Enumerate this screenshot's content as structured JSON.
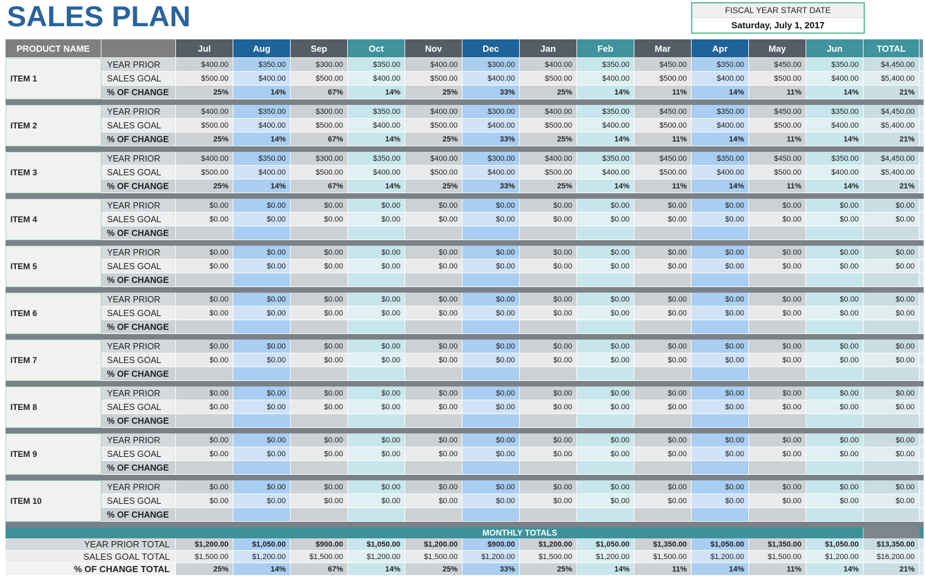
{
  "title": {
    "text": "SALES PLAN"
  },
  "fiscal": {
    "label": "FISCAL YEAR START DATE",
    "value": "Saturday, July 1, 2017"
  },
  "table": {
    "product_header": "PRODUCT NAME",
    "months": [
      "Jul",
      "Aug",
      "Sep",
      "Oct",
      "Nov",
      "Dec",
      "Jan",
      "Feb",
      "Mar",
      "Apr",
      "May",
      "Jun"
    ],
    "total_header": "TOTAL",
    "row_labels": [
      "YEAR PRIOR",
      "SALES GOAL",
      "% OF CHANGE"
    ],
    "items": [
      {
        "name": "ITEM 1",
        "year_prior": [
          "$400.00",
          "$350.00",
          "$300.00",
          "$350.00",
          "$400.00",
          "$300.00",
          "$400.00",
          "$350.00",
          "$450.00",
          "$350.00",
          "$450.00",
          "$350.00"
        ],
        "sales_goal": [
          "$500.00",
          "$400.00",
          "$500.00",
          "$400.00",
          "$500.00",
          "$400.00",
          "$500.00",
          "$400.00",
          "$500.00",
          "$400.00",
          "$500.00",
          "$400.00"
        ],
        "pct_change": [
          "25%",
          "14%",
          "67%",
          "14%",
          "25%",
          "33%",
          "25%",
          "14%",
          "11%",
          "14%",
          "11%",
          "14%"
        ],
        "total_year_prior": "$4,450.00",
        "total_sales_goal": "$5,400.00",
        "total_pct_change": "21%"
      },
      {
        "name": "ITEM 2",
        "year_prior": [
          "$400.00",
          "$350.00",
          "$300.00",
          "$350.00",
          "$400.00",
          "$300.00",
          "$400.00",
          "$350.00",
          "$450.00",
          "$350.00",
          "$450.00",
          "$350.00"
        ],
        "sales_goal": [
          "$500.00",
          "$400.00",
          "$500.00",
          "$400.00",
          "$500.00",
          "$400.00",
          "$500.00",
          "$400.00",
          "$500.00",
          "$400.00",
          "$500.00",
          "$400.00"
        ],
        "pct_change": [
          "25%",
          "14%",
          "67%",
          "14%",
          "25%",
          "33%",
          "25%",
          "14%",
          "11%",
          "14%",
          "11%",
          "14%"
        ],
        "total_year_prior": "$4,450.00",
        "total_sales_goal": "$5,400.00",
        "total_pct_change": "21%"
      },
      {
        "name": "ITEM 3",
        "year_prior": [
          "$400.00",
          "$350.00",
          "$300.00",
          "$350.00",
          "$400.00",
          "$300.00",
          "$400.00",
          "$350.00",
          "$450.00",
          "$350.00",
          "$450.00",
          "$350.00"
        ],
        "sales_goal": [
          "$500.00",
          "$400.00",
          "$500.00",
          "$400.00",
          "$500.00",
          "$400.00",
          "$500.00",
          "$400.00",
          "$500.00",
          "$400.00",
          "$500.00",
          "$400.00"
        ],
        "pct_change": [
          "25%",
          "14%",
          "67%",
          "14%",
          "25%",
          "33%",
          "25%",
          "14%",
          "11%",
          "14%",
          "11%",
          "14%"
        ],
        "total_year_prior": "$4,450.00",
        "total_sales_goal": "$5,400.00",
        "total_pct_change": "21%"
      },
      {
        "name": "ITEM 4",
        "year_prior": [
          "$0.00",
          "$0.00",
          "$0.00",
          "$0.00",
          "$0.00",
          "$0.00",
          "$0.00",
          "$0.00",
          "$0.00",
          "$0.00",
          "$0.00",
          "$0.00"
        ],
        "sales_goal": [
          "$0.00",
          "$0.00",
          "$0.00",
          "$0.00",
          "$0.00",
          "$0.00",
          "$0.00",
          "$0.00",
          "$0.00",
          "$0.00",
          "$0.00",
          "$0.00"
        ],
        "pct_change": [
          "",
          "",
          "",
          "",
          "",
          "",
          "",
          "",
          "",
          "",
          "",
          ""
        ],
        "total_year_prior": "$0.00",
        "total_sales_goal": "$0.00",
        "total_pct_change": ""
      },
      {
        "name": "ITEM 5",
        "year_prior": [
          "$0.00",
          "$0.00",
          "$0.00",
          "$0.00",
          "$0.00",
          "$0.00",
          "$0.00",
          "$0.00",
          "$0.00",
          "$0.00",
          "$0.00",
          "$0.00"
        ],
        "sales_goal": [
          "$0.00",
          "$0.00",
          "$0.00",
          "$0.00",
          "$0.00",
          "$0.00",
          "$0.00",
          "$0.00",
          "$0.00",
          "$0.00",
          "$0.00",
          "$0.00"
        ],
        "pct_change": [
          "",
          "",
          "",
          "",
          "",
          "",
          "",
          "",
          "",
          "",
          "",
          ""
        ],
        "total_year_prior": "$0.00",
        "total_sales_goal": "$0.00",
        "total_pct_change": ""
      },
      {
        "name": "ITEM 6",
        "year_prior": [
          "$0.00",
          "$0.00",
          "$0.00",
          "$0.00",
          "$0.00",
          "$0.00",
          "$0.00",
          "$0.00",
          "$0.00",
          "$0.00",
          "$0.00",
          "$0.00"
        ],
        "sales_goal": [
          "$0.00",
          "$0.00",
          "$0.00",
          "$0.00",
          "$0.00",
          "$0.00",
          "$0.00",
          "$0.00",
          "$0.00",
          "$0.00",
          "$0.00",
          "$0.00"
        ],
        "pct_change": [
          "",
          "",
          "",
          "",
          "",
          "",
          "",
          "",
          "",
          "",
          "",
          ""
        ],
        "total_year_prior": "$0.00",
        "total_sales_goal": "$0.00",
        "total_pct_change": ""
      },
      {
        "name": "ITEM 7",
        "year_prior": [
          "$0.00",
          "$0.00",
          "$0.00",
          "$0.00",
          "$0.00",
          "$0.00",
          "$0.00",
          "$0.00",
          "$0.00",
          "$0.00",
          "$0.00",
          "$0.00"
        ],
        "sales_goal": [
          "$0.00",
          "$0.00",
          "$0.00",
          "$0.00",
          "$0.00",
          "$0.00",
          "$0.00",
          "$0.00",
          "$0.00",
          "$0.00",
          "$0.00",
          "$0.00"
        ],
        "pct_change": [
          "",
          "",
          "",
          "",
          "",
          "",
          "",
          "",
          "",
          "",
          "",
          ""
        ],
        "total_year_prior": "$0.00",
        "total_sales_goal": "$0.00",
        "total_pct_change": ""
      },
      {
        "name": "ITEM 8",
        "year_prior": [
          "$0.00",
          "$0.00",
          "$0.00",
          "$0.00",
          "$0.00",
          "$0.00",
          "$0.00",
          "$0.00",
          "$0.00",
          "$0.00",
          "$0.00",
          "$0.00"
        ],
        "sales_goal": [
          "$0.00",
          "$0.00",
          "$0.00",
          "$0.00",
          "$0.00",
          "$0.00",
          "$0.00",
          "$0.00",
          "$0.00",
          "$0.00",
          "$0.00",
          "$0.00"
        ],
        "pct_change": [
          "",
          "",
          "",
          "",
          "",
          "",
          "",
          "",
          "",
          "",
          "",
          ""
        ],
        "total_year_prior": "$0.00",
        "total_sales_goal": "$0.00",
        "total_pct_change": ""
      },
      {
        "name": "ITEM 9",
        "year_prior": [
          "$0.00",
          "$0.00",
          "$0.00",
          "$0.00",
          "$0.00",
          "$0.00",
          "$0.00",
          "$0.00",
          "$0.00",
          "$0.00",
          "$0.00",
          "$0.00"
        ],
        "sales_goal": [
          "$0.00",
          "$0.00",
          "$0.00",
          "$0.00",
          "$0.00",
          "$0.00",
          "$0.00",
          "$0.00",
          "$0.00",
          "$0.00",
          "$0.00",
          "$0.00"
        ],
        "pct_change": [
          "",
          "",
          "",
          "",
          "",
          "",
          "",
          "",
          "",
          "",
          "",
          ""
        ],
        "total_year_prior": "$0.00",
        "total_sales_goal": "$0.00",
        "total_pct_change": ""
      },
      {
        "name": "ITEM 10",
        "year_prior": [
          "$0.00",
          "$0.00",
          "$0.00",
          "$0.00",
          "$0.00",
          "$0.00",
          "$0.00",
          "$0.00",
          "$0.00",
          "$0.00",
          "$0.00",
          "$0.00"
        ],
        "sales_goal": [
          "$0.00",
          "$0.00",
          "$0.00",
          "$0.00",
          "$0.00",
          "$0.00",
          "$0.00",
          "$0.00",
          "$0.00",
          "$0.00",
          "$0.00",
          "$0.00"
        ],
        "pct_change": [
          "",
          "",
          "",
          "",
          "",
          "",
          "",
          "",
          "",
          "",
          "",
          ""
        ],
        "total_year_prior": "$0.00",
        "total_sales_goal": "$0.00",
        "total_pct_change": ""
      }
    ],
    "monthly_totals": {
      "header": "MONTHLY TOTALS",
      "rows": [
        {
          "label": "YEAR PRIOR TOTAL",
          "values": [
            "$1,200.00",
            "$1,050.00",
            "$900.00",
            "$1,050.00",
            "$1,200.00",
            "$900.00",
            "$1,200.00",
            "$1,050.00",
            "$1,350.00",
            "$1,050.00",
            "$1,350.00",
            "$1,050.00"
          ],
          "total": "$13,350.00"
        },
        {
          "label": "SALES GOAL TOTAL",
          "values": [
            "$1,500.00",
            "$1,200.00",
            "$1,500.00",
            "$1,200.00",
            "$1,500.00",
            "$1,200.00",
            "$1,500.00",
            "$1,200.00",
            "$1,500.00",
            "$1,200.00",
            "$1,500.00",
            "$1,200.00"
          ],
          "total": "$16,200.00"
        },
        {
          "label": "% OF CHANGE TOTAL",
          "values": [
            "25%",
            "14%",
            "67%",
            "14%",
            "25%",
            "33%",
            "25%",
            "14%",
            "11%",
            "14%",
            "11%",
            "14%"
          ],
          "total": "21%"
        }
      ]
    }
  },
  "colors": {
    "title_blue": "#29639B",
    "header_slate": "#555E66",
    "header_blue": "#1F639B",
    "header_teal": "#3F939C",
    "product_header_gray": "#7F7F7F",
    "separator_gray": "#7B8287",
    "band_teal": "#3D929A",
    "fiscal_border_green": "#6AC19E",
    "tint_gray": "#CDD1D4",
    "tint_blue": "#A9CEF1",
    "tint_teal": "#C7E6EC",
    "tint_total": "#C9DDE3"
  }
}
